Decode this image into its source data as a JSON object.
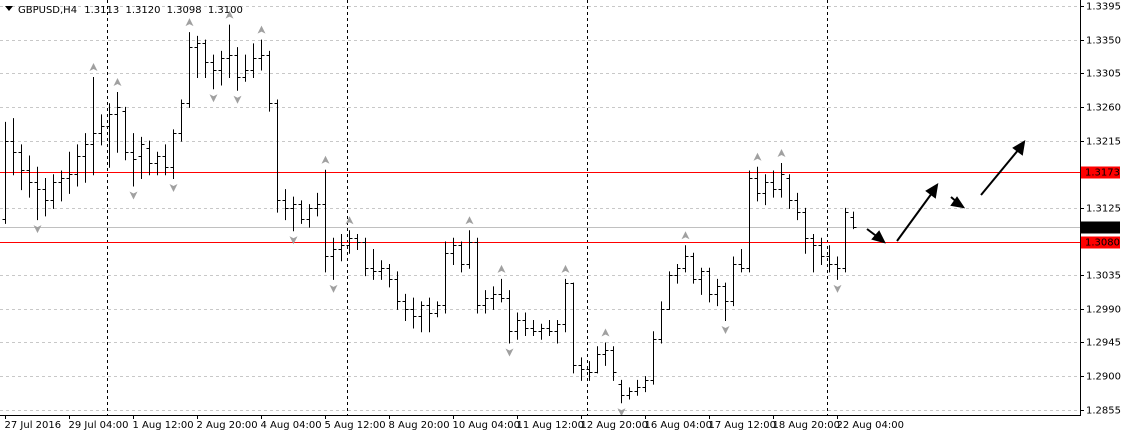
{
  "chart_data": {
    "type": "ohlc",
    "header": {
      "symbol": "GBPUSD,H4",
      "prices": [
        1.3113,
        {
          "value": 1.312,
          "label": "1.3120"
        },
        1.3098,
        {
          "value": 1.31,
          "label": "1.3100"
        }
      ]
    },
    "categories": [
      "27 Jul 2016",
      null,
      null,
      null,
      null,
      null,
      null,
      null,
      "29 Jul 04:00",
      null,
      null,
      null,
      null,
      null,
      null,
      null,
      "1 Aug 12:00",
      null,
      null,
      null,
      null,
      null,
      null,
      null,
      "2 Aug 20:00",
      null,
      null,
      null,
      null,
      null,
      null,
      null,
      "4 Aug 04:00",
      null,
      null,
      null,
      null,
      null,
      null,
      null,
      "5 Aug 12:00",
      null,
      null,
      null,
      null,
      null,
      null,
      null,
      "8 Aug 20:00",
      null,
      null,
      null,
      null,
      null,
      null,
      null,
      "10 Aug 04:00",
      null,
      null,
      null,
      null,
      null,
      null,
      null,
      "11 Aug 12:00",
      null,
      null,
      null,
      null,
      null,
      null,
      null,
      "12 Aug 20:00",
      null,
      null,
      null,
      null,
      null,
      null,
      null,
      "16 Aug 04:00",
      null,
      null,
      null,
      null,
      null,
      null,
      null,
      "17 Aug 12:00",
      null,
      null,
      null,
      null,
      null,
      null,
      null,
      "18 Aug 20:00",
      null,
      null,
      null,
      null,
      null,
      null,
      null,
      "22 Aug 04:00",
      null,
      null
    ],
    "open": [
      1.311,
      1.3215,
      1.32,
      1.3175,
      1.316,
      1.315,
      1.3135,
      1.316,
      1.3165,
      1.317,
      1.3195,
      1.321,
      1.3225,
      1.3235,
      1.325,
      1.3255,
      1.32,
      1.3195,
      1.3205,
      1.3185,
      1.3195,
      1.318,
      1.3225,
      1.3265,
      1.334,
      1.3345,
      1.332,
      1.331,
      1.3325,
      1.333,
      1.33,
      1.331,
      1.3325,
      1.333,
      1.3265,
      1.3135,
      1.3125,
      1.313,
      1.311,
      1.3125,
      1.313,
      1.306,
      1.307,
      1.3075,
      1.3085,
      1.308,
      1.3045,
      1.304,
      1.3045,
      1.303,
      1.3,
      1.299,
      1.298,
      1.2995,
      1.2985,
      1.2995,
      1.3065,
      1.3075,
      1.305,
      1.308,
      1.2995,
      1.3005,
      1.301,
      1.3005,
      1.296,
      1.2975,
      1.2965,
      1.296,
      1.2965,
      1.296,
      1.297,
      1.3025,
      1.2915,
      1.291,
      1.2905,
      1.293,
      1.2935,
      1.289,
      1.2875,
      1.288,
      1.2885,
      1.2895,
      1.295,
      1.299,
      1.3035,
      1.3045,
      1.306,
      1.303,
      1.304,
      1.301,
      1.302,
      1.3,
      1.305,
      1.3045,
      1.3165,
      1.3145,
      1.316,
      1.315,
      1.3165,
      1.3135,
      1.312,
      1.3085,
      1.3075,
      1.306,
      1.305,
      1.3045,
      1.3113
    ],
    "high": [
      1.324,
      1.3245,
      1.321,
      1.3195,
      1.318,
      1.3165,
      1.317,
      1.3175,
      1.32,
      1.321,
      1.3225,
      1.33,
      1.325,
      1.3265,
      1.328,
      1.326,
      1.3225,
      1.322,
      1.3215,
      1.32,
      1.321,
      1.323,
      1.327,
      1.336,
      1.3355,
      1.335,
      1.333,
      1.3335,
      1.337,
      1.334,
      1.333,
      1.3345,
      1.335,
      1.3335,
      1.327,
      1.315,
      1.314,
      1.3135,
      1.313,
      1.3145,
      1.3176,
      1.3085,
      1.309,
      1.3095,
      1.309,
      1.3085,
      1.307,
      1.3055,
      1.305,
      1.304,
      1.301,
      1.3005,
      1.3,
      1.3005,
      1.3,
      1.308,
      1.3085,
      1.308,
      1.3095,
      1.3085,
      1.3015,
      1.302,
      1.303,
      1.3015,
      1.2985,
      1.2985,
      1.2975,
      1.297,
      1.2975,
      1.2975,
      1.303,
      1.3025,
      1.2925,
      1.292,
      1.294,
      1.2945,
      1.294,
      1.2895,
      1.2885,
      1.2895,
      1.29,
      1.296,
      1.3,
      1.304,
      1.305,
      1.3075,
      1.3065,
      1.3045,
      1.3045,
      1.303,
      1.3025,
      1.306,
      1.307,
      1.3175,
      1.318,
      1.317,
      1.3175,
      1.3185,
      1.317,
      1.3145,
      1.3125,
      1.309,
      1.3085,
      1.3075,
      1.306,
      1.3125,
      1.312
    ],
    "low": [
      1.3105,
      1.317,
      1.315,
      1.314,
      1.311,
      1.3115,
      1.3125,
      1.3135,
      1.3145,
      1.3155,
      1.316,
      1.317,
      1.321,
      1.318,
      1.32,
      1.319,
      1.3155,
      1.3165,
      1.317,
      1.317,
      1.317,
      1.3165,
      1.3215,
      1.326,
      1.33,
      1.33,
      1.3285,
      1.329,
      1.33,
      1.3283,
      1.3295,
      1.33,
      1.331,
      1.3255,
      1.312,
      1.311,
      1.3095,
      1.3105,
      1.31,
      1.3115,
      1.304,
      1.303,
      1.3055,
      1.3065,
      1.307,
      1.3035,
      1.303,
      1.303,
      1.302,
      1.299,
      1.2975,
      1.2965,
      1.296,
      1.296,
      1.298,
      1.2985,
      1.305,
      1.304,
      1.3045,
      1.2985,
      1.2985,
      1.299,
      1.3,
      1.2945,
      1.295,
      1.2955,
      1.2955,
      1.295,
      1.2955,
      1.2945,
      1.296,
      1.2905,
      1.2895,
      1.2895,
      1.2905,
      1.2915,
      1.2895,
      1.2865,
      1.287,
      1.2875,
      1.288,
      1.289,
      1.2945,
      1.299,
      1.3025,
      1.304,
      1.3025,
      1.301,
      1.3,
      1.2995,
      1.2975,
      1.2995,
      1.304,
      1.304,
      1.3135,
      1.313,
      1.314,
      1.314,
      1.3125,
      1.311,
      1.3065,
      1.304,
      1.305,
      1.304,
      1.303,
      1.304,
      1.3098
    ],
    "close": [
      1.3215,
      1.32,
      1.3175,
      1.316,
      1.315,
      1.3135,
      1.316,
      1.3165,
      1.317,
      1.3195,
      1.321,
      1.3225,
      1.3235,
      1.325,
      1.326,
      1.32,
      1.319,
      1.321,
      1.3185,
      1.3195,
      1.318,
      1.3225,
      1.3265,
      1.334,
      1.3345,
      1.332,
      1.331,
      1.3325,
      1.333,
      1.33,
      1.331,
      1.3325,
      1.333,
      1.3265,
      1.3135,
      1.3125,
      1.313,
      1.311,
      1.3125,
      1.313,
      1.306,
      1.307,
      1.3075,
      1.3085,
      1.308,
      1.3045,
      1.304,
      1.3045,
      1.303,
      1.3,
      1.299,
      1.298,
      1.2995,
      1.2985,
      1.2995,
      1.3065,
      1.3075,
      1.305,
      1.308,
      1.2995,
      1.3005,
      1.301,
      1.3005,
      1.296,
      1.2975,
      1.2965,
      1.296,
      1.2965,
      1.296,
      1.297,
      1.3025,
      1.2915,
      1.291,
      1.2905,
      1.293,
      1.2935,
      1.2905,
      1.2875,
      1.288,
      1.2885,
      1.2895,
      1.295,
      1.299,
      1.3035,
      1.3045,
      1.306,
      1.303,
      1.304,
      1.301,
      1.302,
      1.3,
      1.305,
      1.3045,
      1.3165,
      1.3145,
      1.316,
      1.315,
      1.317,
      1.3135,
      1.312,
      1.3085,
      1.3075,
      1.306,
      1.305,
      1.3045,
      1.312,
      1.31
    ],
    "color": "#000000",
    "fractal_color": "#a0a0a0",
    "ylim": [
      1.2848,
      1.3403
    ],
    "yticks": [
      1.3395,
      {
        "value": 1.335,
        "label": "1.3350"
      },
      1.3305,
      {
        "value": 1.326,
        "label": "1.3260"
      },
      1.3215,
      1.3125,
      1.3035,
      {
        "value": 1.299,
        "label": "1.2990"
      },
      1.2945,
      {
        "value": 1.29,
        "label": "1.2900"
      },
      1.2855
    ],
    "grid": true,
    "hlines": [
      {
        "value": 1.3173,
        "color": "#ff0000"
      },
      {
        "value": 1.308,
        "label": "1.3080",
        "color": "#ff0000"
      }
    ],
    "bid": {
      "value": 1.31,
      "label": "1.3100",
      "color": "#c0c0c0"
    }
  }
}
